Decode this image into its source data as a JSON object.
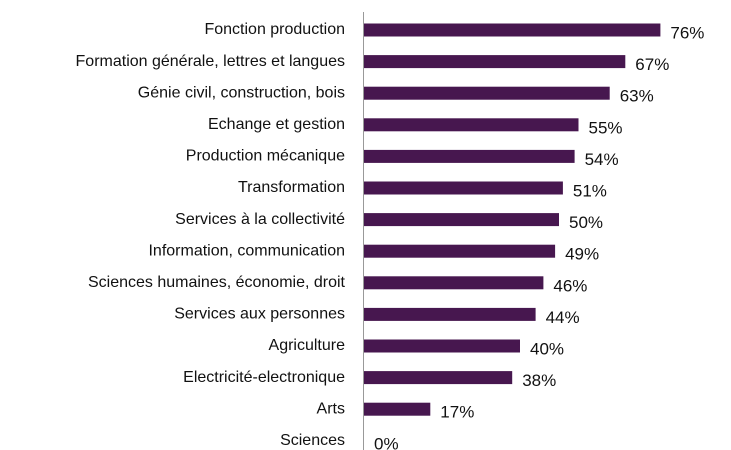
{
  "chart_data": {
    "type": "bar",
    "orientation": "horizontal",
    "categories": [
      "Fonction production",
      "Formation générale, lettres et langues",
      "Génie civil, construction, bois",
      "Echange et gestion",
      "Production mécanique",
      "Transformation",
      "Services à la collectivité",
      "Information, communication",
      "Sciences humaines, économie, droit",
      "Services aux personnes",
      "Agriculture",
      "Electricité-electronique",
      "Arts",
      "Sciences"
    ],
    "values": [
      76,
      67,
      63,
      55,
      54,
      51,
      50,
      49,
      46,
      44,
      40,
      38,
      17,
      0
    ],
    "value_labels": [
      "76%",
      "67%",
      "63%",
      "55%",
      "54%",
      "51%",
      "50%",
      "49%",
      "46%",
      "44%",
      "40%",
      "38%",
      "17%",
      "0%"
    ],
    "color": "#47174f"
  }
}
